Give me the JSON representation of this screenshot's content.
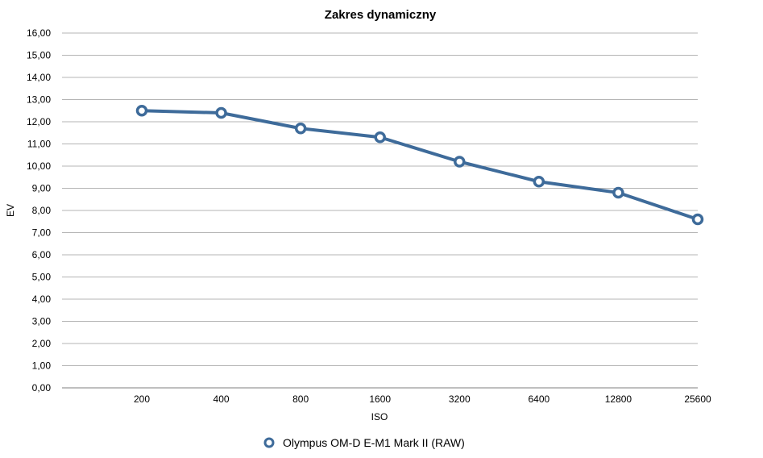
{
  "chart_data": {
    "type": "line",
    "title": "Zakres dynamiczny",
    "xlabel": "ISO",
    "ylabel": "EV",
    "categories": [
      "200",
      "400",
      "800",
      "1600",
      "3200",
      "6400",
      "12800",
      "25600"
    ],
    "series": [
      {
        "name": "Olympus OM-D E-M1 Mark II (RAW)",
        "values": [
          12.5,
          12.4,
          11.7,
          11.3,
          10.2,
          9.3,
          8.8,
          7.6
        ],
        "color": "#3e6b9a"
      }
    ],
    "ylim": [
      0,
      16
    ],
    "yticks": [
      "0,00",
      "1,00",
      "2,00",
      "3,00",
      "4,00",
      "5,00",
      "6,00",
      "7,00",
      "8,00",
      "9,00",
      "10,00",
      "11,00",
      "12,00",
      "13,00",
      "14,00",
      "15,00",
      "16,00"
    ],
    "grid": true,
    "legend_position": "bottom-center",
    "marker": "hollow-circle-icon"
  }
}
